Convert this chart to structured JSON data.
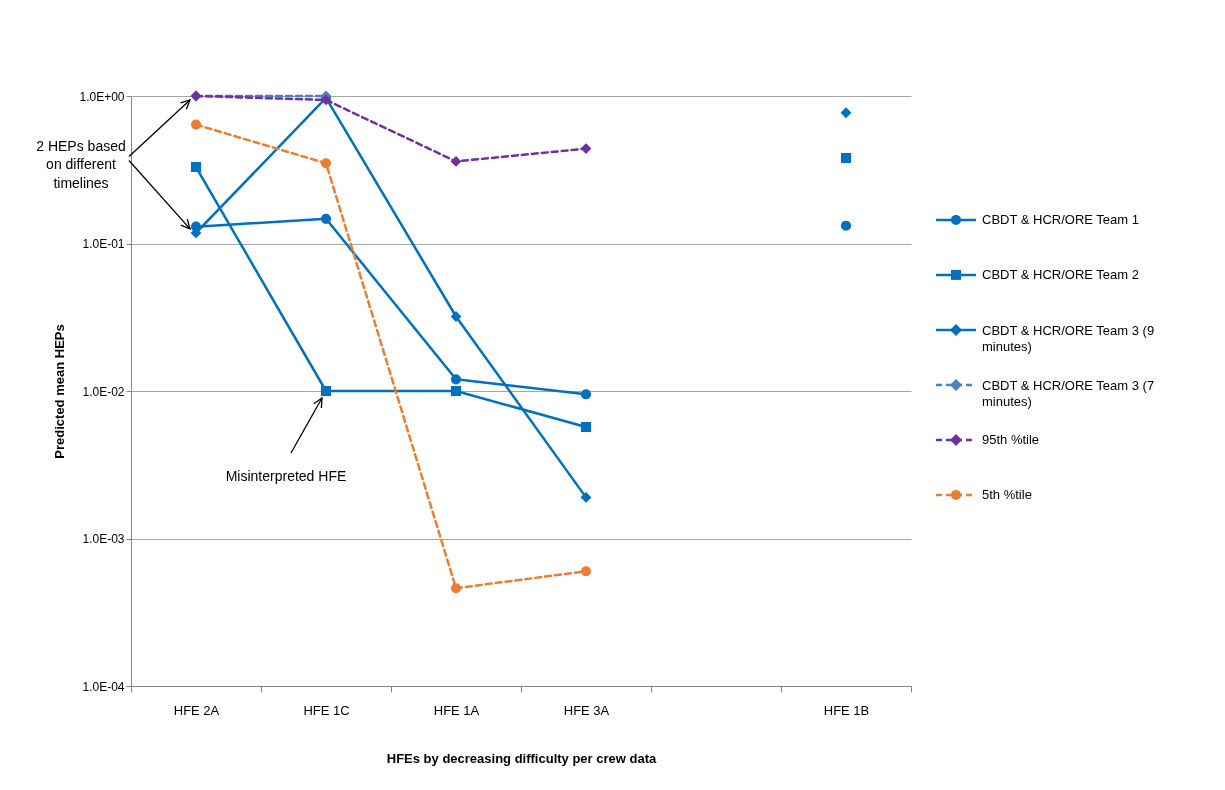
{
  "chart_data": {
    "type": "line",
    "xlabel": "HFEs by decreasing difficulty per crew data",
    "ylabel": "Predicted mean HEPs",
    "categories": [
      "HFE 2A",
      "HFE 1C",
      "HFE 1A",
      "HFE 3A",
      null,
      "HFE 1B"
    ],
    "series": [
      {
        "name": "CBDT & HCR/ORE Team 1",
        "color": "#0070c0",
        "marker": "circle",
        "line_style": "solid",
        "values": [
          0.13,
          0.147,
          0.012,
          0.0095,
          null,
          0.132
        ]
      },
      {
        "name": "CBDT & HCR/ORE Team 2",
        "color": "#0070c0",
        "marker": "square",
        "line_style": "solid",
        "values": [
          0.33,
          0.01,
          0.01,
          0.0057,
          null,
          0.38
        ]
      },
      {
        "name": "CBDT & HCR/ORE Team 3 (9 minutes)",
        "color": "#0070c0",
        "marker": "diamond",
        "line_style": "solid",
        "values": [
          0.118,
          0.97,
          0.032,
          0.0019,
          null,
          0.77
        ]
      },
      {
        "name": "CBDT & HCR/ORE Team 3 (7 minutes)",
        "color": "#4f81bd",
        "marker": "diamond",
        "line_style": "dashed",
        "values": [
          1.0,
          1.0,
          null,
          null,
          null,
          null
        ]
      },
      {
        "name": "95th %tile",
        "color": "#7030a0",
        "marker": "diamond",
        "line_style": "dashed",
        "values": [
          1.0,
          0.94,
          0.36,
          0.44,
          null,
          null
        ]
      },
      {
        "name": "5th %tile",
        "color": "#ed7d31",
        "marker": "circle",
        "line_style": "dashed",
        "values": [
          0.64,
          0.35,
          0.00046,
          0.0006,
          null,
          null
        ]
      }
    ],
    "log": true,
    "ylim": [
      0.0001,
      1
    ],
    "yticks": [
      {
        "value": 0.0001,
        "label": "1.0E-04"
      },
      {
        "value": 0.001,
        "label": "1.0E-03"
      },
      {
        "value": 0.01,
        "label": "1.0E-02"
      },
      {
        "value": 0.1,
        "label": "1.0E-01"
      },
      {
        "value": 1,
        "label": "1.0E+00"
      }
    ],
    "grid": "y",
    "legend": "right",
    "annotations": [
      {
        "text": "2 HEPs based on different timelines",
        "x": "HFE 2A",
        "y": 1.0
      },
      {
        "text": "Misinterpreted HFE",
        "x": "HFE 1C",
        "y": 0.01
      }
    ]
  }
}
